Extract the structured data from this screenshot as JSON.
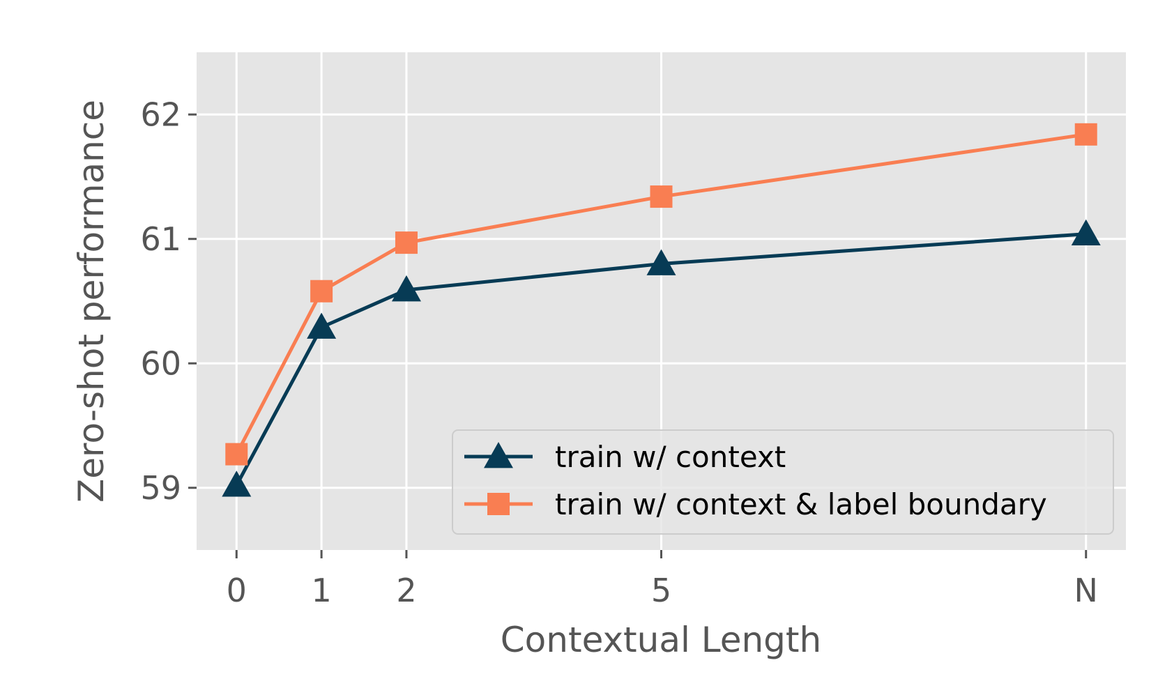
{
  "chart_data": {
    "type": "line",
    "title": "",
    "xlabel": "Contextual Length",
    "ylabel": "Zero-shot performance",
    "categories": [
      "0",
      "1",
      "2",
      "5",
      "N"
    ],
    "x_positions": [
      0,
      1,
      2,
      5,
      10
    ],
    "ylim": [
      58.5,
      62.5
    ],
    "yticks": [
      59,
      60,
      61,
      62
    ],
    "grid": true,
    "legend_position": "lower right",
    "series": [
      {
        "name": "train w/ context",
        "values": [
          59.02,
          60.29,
          60.59,
          60.8,
          61.04
        ],
        "color": "#073b55",
        "marker": "triangle"
      },
      {
        "name": "train w/ context & label boundary",
        "values": [
          59.27,
          60.58,
          60.97,
          61.34,
          61.84
        ],
        "color": "#f97e52",
        "marker": "square"
      }
    ]
  }
}
